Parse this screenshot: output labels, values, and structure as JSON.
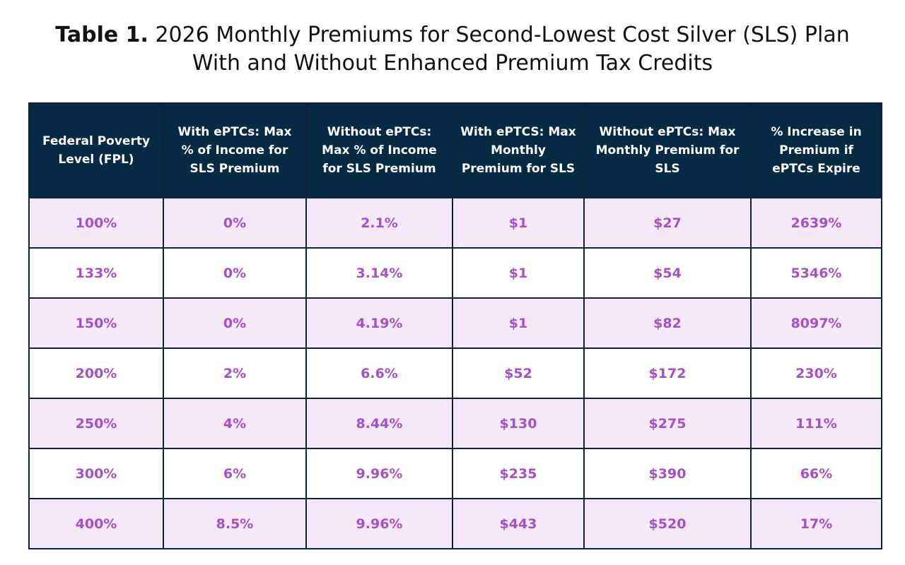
{
  "title": {
    "label": "Table 1.",
    "line1": "2026 Monthly Premiums for Second-Lowest Cost Silver (SLS) Plan",
    "line2": "With and Without Enhanced Premium Tax Credits"
  },
  "table": {
    "headers": [
      "Federal Poverty Level (FPL)",
      "With ePTCs: Max % of Income for SLS Premium",
      "Without ePTCs: Max % of Income for SLS Premium",
      "With ePTCS: Max Monthly Premium for SLS",
      "Without ePTCs: Max Monthly Premium for SLS",
      "% Increase in Premium if ePTCs Expire"
    ],
    "rows": [
      [
        "100%",
        "0%",
        "2.1%",
        "$1",
        "$27",
        "2639%"
      ],
      [
        "133%",
        "0%",
        "3.14%",
        "$1",
        "$54",
        "5346%"
      ],
      [
        "150%",
        "0%",
        "4.19%",
        "$1",
        "$82",
        "8097%"
      ],
      [
        "200%",
        "2%",
        "6.6%",
        "$52",
        "$172",
        "230%"
      ],
      [
        "250%",
        "4%",
        "8.44%",
        "$130",
        "$275",
        "111%"
      ],
      [
        "300%",
        "6%",
        "9.96%",
        "$235",
        "$390",
        "66%"
      ],
      [
        "400%",
        "8.5%",
        "9.96%",
        "$443",
        "$520",
        "17%"
      ]
    ]
  },
  "colors": {
    "header_bg": "#052a43",
    "header_text": "#ffffff",
    "cell_text": "#a650c8",
    "shaded_row_bg": "#f5e9f9",
    "border": "#0f2238"
  }
}
